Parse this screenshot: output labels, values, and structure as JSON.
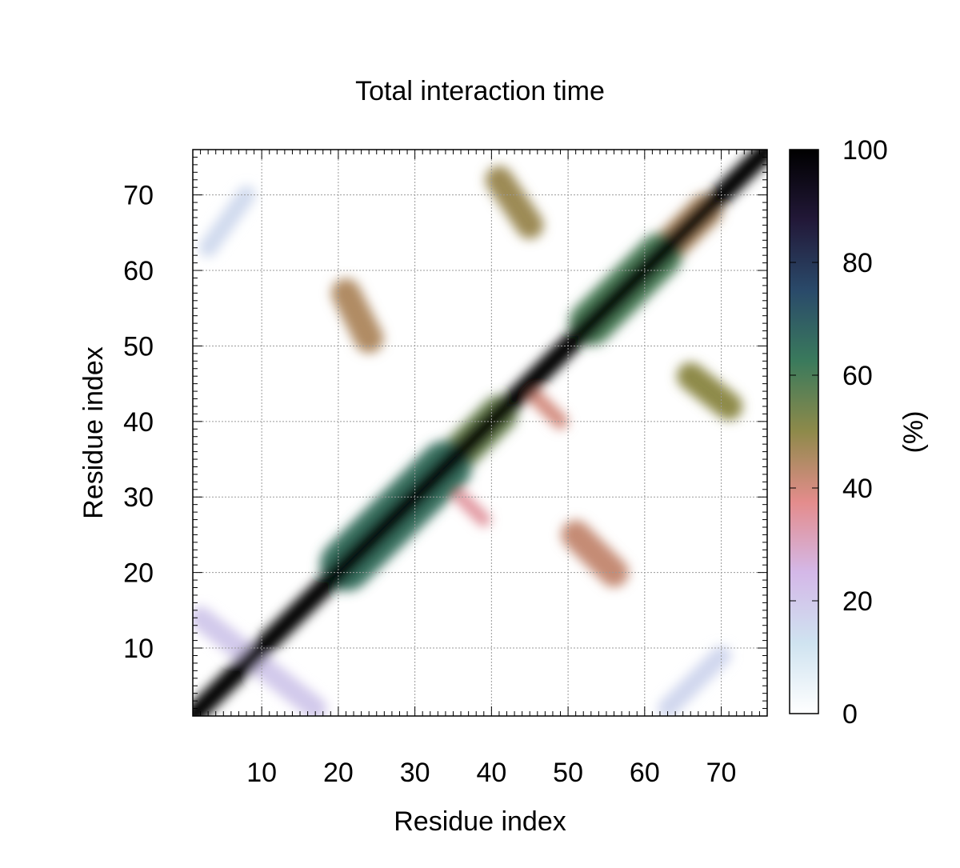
{
  "chart_data": {
    "type": "heatmap",
    "title": "Total interaction time",
    "xlabel": "Residue index",
    "ylabel": "Residue index",
    "colorbar_label": "(%)",
    "xlim": [
      1,
      76
    ],
    "ylim": [
      1,
      76
    ],
    "x_ticks": [
      10,
      20,
      30,
      40,
      50,
      60,
      70
    ],
    "y_ticks": [
      10,
      20,
      30,
      40,
      50,
      60,
      70
    ],
    "colorbar_range": [
      0,
      100
    ],
    "colorbar_ticks": [
      0,
      20,
      40,
      60,
      80,
      100
    ],
    "grid": true,
    "colormap": [
      "#ffffff",
      "#cfe3f0",
      "#d4b8e8",
      "#e48c8c",
      "#8e8a4a",
      "#3a7a5c",
      "#2a4a6a",
      "#221838",
      "#000000"
    ],
    "diagonal": [
      {
        "x": [
          1,
          76
        ],
        "value": 100,
        "halfwidth": 1.3
      },
      {
        "x": [
          21,
          34
        ],
        "value": 65,
        "halfwidth": 3.4
      },
      {
        "x": [
          36,
          41
        ],
        "value": 55,
        "halfwidth": 2.4
      },
      {
        "x": [
          53,
          62
        ],
        "value": 60,
        "halfwidth": 2.9
      },
      {
        "x": [
          62,
          68
        ],
        "value": 45,
        "halfwidth": 2.2
      }
    ],
    "contacts": [
      {
        "x1": 41,
        "y1": 72,
        "x2": 45,
        "y2": 66,
        "value": 48,
        "width": 3.6
      },
      {
        "x1": 21,
        "y1": 57,
        "x2": 24,
        "y2": 51,
        "value": 45,
        "width": 3.8
      },
      {
        "x1": 66,
        "y1": 46,
        "x2": 71,
        "y2": 42,
        "value": 50,
        "width": 3.6
      },
      {
        "x1": 51,
        "y1": 25,
        "x2": 56,
        "y2": 20,
        "value": 42,
        "width": 3.8
      },
      {
        "x1": 2,
        "y1": 14,
        "x2": 17,
        "y2": 2,
        "value": 20,
        "width": 3.0
      },
      {
        "x1": 3,
        "y1": 63,
        "x2": 8,
        "y2": 70,
        "value": 15,
        "width": 2.4
      },
      {
        "x1": 63,
        "y1": 2,
        "x2": 70,
        "y2": 9,
        "value": 16,
        "width": 2.6
      },
      {
        "x1": 45,
        "y1": 44,
        "x2": 49,
        "y2": 40,
        "value": 40,
        "width": 2.0
      },
      {
        "x1": 36,
        "y1": 30,
        "x2": 39,
        "y2": 27,
        "value": 35,
        "width": 1.8
      }
    ]
  }
}
